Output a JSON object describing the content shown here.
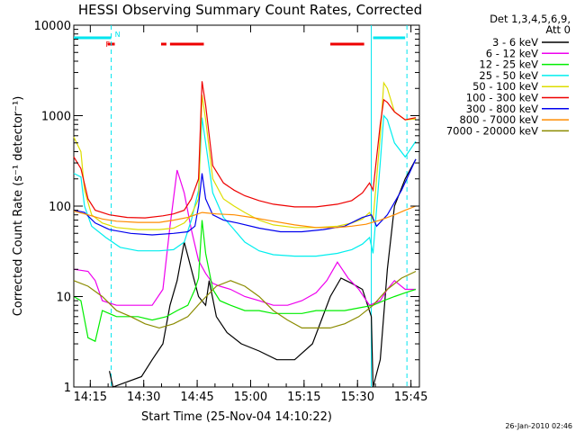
{
  "chart_data": {
    "type": "line",
    "title": "HESSI Observing Summary Count Rates, Corrected",
    "xlabel": "Start Time (25-Nov-04 14:10:22)",
    "ylabel": "Corrected Count Rate (s⁻¹ detector⁻¹)",
    "yscale": "log",
    "ylim": [
      1,
      10000
    ],
    "xlim_minutes": [
      0,
      97
    ],
    "x_tick_labels": [
      "14:15",
      "14:30",
      "14:45",
      "15:00",
      "15:15",
      "15:30",
      "15:45"
    ],
    "x_tick_minutes": [
      4.63,
      19.63,
      34.63,
      49.63,
      64.63,
      79.63,
      94.63
    ],
    "y_tick_labels": [
      "1",
      "10",
      "100",
      "1000",
      "10000"
    ],
    "y_tick_values": [
      1,
      10,
      100,
      1000,
      10000
    ],
    "legend_header": [
      "Det 1,3,4,5,6,9,",
      "Att 0"
    ],
    "legend_position": "right",
    "timestamp": "26-Jan-2010 02:46",
    "flags": [
      {
        "label": "F",
        "color": "#ee0000",
        "segments": [
          [
            9.5,
            11.5
          ]
        ]
      },
      {
        "label": "N",
        "color": "#00e5ee",
        "segments": [
          [
            0,
            10.5
          ],
          [
            84,
            93
          ]
        ]
      },
      {
        "label": "",
        "color": "#ee0000",
        "segments": [
          [
            24.5,
            26
          ],
          [
            27,
            36.5
          ],
          [
            72,
            81.5
          ]
        ]
      }
    ],
    "night_boundaries": [
      {
        "t": 10.5,
        "style": "dashed",
        "color": "#00e5ee"
      },
      {
        "t": 83.5,
        "style": "solid",
        "color": "#00e5ee"
      },
      {
        "t": 93.5,
        "style": "dashed",
        "color": "#00e5ee"
      }
    ],
    "series": [
      {
        "name": "3 - 6 keV",
        "color": "#000000",
        "points": [
          [
            10,
            1.5
          ],
          [
            11,
            1.0
          ],
          [
            19,
            1.3
          ],
          [
            22,
            2.0
          ],
          [
            25,
            3
          ],
          [
            27,
            8
          ],
          [
            29,
            15
          ],
          [
            31,
            40
          ],
          [
            33,
            20
          ],
          [
            35,
            10
          ],
          [
            37,
            8
          ],
          [
            38,
            15
          ],
          [
            40,
            6
          ],
          [
            43,
            4
          ],
          [
            47,
            3
          ],
          [
            52,
            2.5
          ],
          [
            57,
            2
          ],
          [
            62,
            2
          ],
          [
            67,
            3
          ],
          [
            72,
            10
          ],
          [
            75,
            16
          ],
          [
            78,
            14
          ],
          [
            81,
            12
          ],
          [
            83.5,
            6
          ],
          [
            84,
            1.0
          ],
          [
            86,
            2
          ],
          [
            88,
            20
          ],
          [
            90,
            100
          ],
          [
            93,
            200
          ],
          [
            96,
            330
          ]
        ]
      },
      {
        "name": "6 - 12 keV",
        "color": "#ee00ee",
        "points": [
          [
            0,
            20
          ],
          [
            4,
            19
          ],
          [
            6,
            15
          ],
          [
            8,
            9
          ],
          [
            12,
            8
          ],
          [
            18,
            8
          ],
          [
            22,
            8
          ],
          [
            25,
            12
          ],
          [
            27,
            60
          ],
          [
            29,
            250
          ],
          [
            31,
            140
          ],
          [
            33,
            55
          ],
          [
            35,
            25
          ],
          [
            37,
            18
          ],
          [
            39,
            14
          ],
          [
            41,
            13
          ],
          [
            44,
            12
          ],
          [
            48,
            10
          ],
          [
            52,
            9
          ],
          [
            56,
            8
          ],
          [
            60,
            8
          ],
          [
            64,
            9
          ],
          [
            68,
            11
          ],
          [
            71,
            15
          ],
          [
            74,
            24
          ],
          [
            77,
            16
          ],
          [
            80,
            12
          ],
          [
            83,
            8
          ],
          [
            86,
            9
          ],
          [
            88,
            12
          ],
          [
            90,
            15
          ],
          [
            93,
            12
          ],
          [
            96,
            12
          ]
        ]
      },
      {
        "name": "12 - 25 keV",
        "color": "#00ee00",
        "points": [
          [
            0,
            10
          ],
          [
            2,
            9
          ],
          [
            4,
            3.5
          ],
          [
            6,
            3.2
          ],
          [
            8,
            7
          ],
          [
            12,
            6
          ],
          [
            18,
            6
          ],
          [
            22,
            5.5
          ],
          [
            26,
            6
          ],
          [
            29,
            7
          ],
          [
            32,
            8
          ],
          [
            34,
            12
          ],
          [
            35,
            16
          ],
          [
            36,
            70
          ],
          [
            37,
            30
          ],
          [
            39,
            12
          ],
          [
            41,
            9
          ],
          [
            44,
            8
          ],
          [
            48,
            7
          ],
          [
            52,
            7
          ],
          [
            56,
            6.5
          ],
          [
            60,
            6.5
          ],
          [
            64,
            6.5
          ],
          [
            68,
            7
          ],
          [
            72,
            7
          ],
          [
            76,
            7
          ],
          [
            80,
            7.5
          ],
          [
            84,
            8
          ],
          [
            87,
            9
          ],
          [
            90,
            10
          ],
          [
            93,
            11
          ],
          [
            96,
            12
          ]
        ]
      },
      {
        "name": "25 - 50 keV",
        "color": "#00eeee",
        "points": [
          [
            0,
            230
          ],
          [
            2,
            210
          ],
          [
            3,
            100
          ],
          [
            5,
            60
          ],
          [
            9,
            45
          ],
          [
            13,
            35
          ],
          [
            18,
            32
          ],
          [
            24,
            32
          ],
          [
            28,
            33
          ],
          [
            31,
            40
          ],
          [
            33,
            70
          ],
          [
            35,
            150
          ],
          [
            36,
            950
          ],
          [
            37,
            500
          ],
          [
            39,
            140
          ],
          [
            42,
            75
          ],
          [
            45,
            55
          ],
          [
            48,
            40
          ],
          [
            52,
            32
          ],
          [
            56,
            29
          ],
          [
            62,
            28
          ],
          [
            68,
            28
          ],
          [
            74,
            30
          ],
          [
            78,
            33
          ],
          [
            81,
            38
          ],
          [
            83,
            45
          ],
          [
            84,
            30
          ],
          [
            86,
            300
          ],
          [
            87,
            1000
          ],
          [
            88,
            900
          ],
          [
            90,
            500
          ],
          [
            93,
            350
          ],
          [
            96,
            520
          ]
        ]
      },
      {
        "name": "50 - 100 keV",
        "color": "#dddd00",
        "points": [
          [
            0,
            580
          ],
          [
            2,
            400
          ],
          [
            3,
            150
          ],
          [
            5,
            80
          ],
          [
            8,
            65
          ],
          [
            12,
            58
          ],
          [
            18,
            55
          ],
          [
            24,
            55
          ],
          [
            28,
            57
          ],
          [
            31,
            65
          ],
          [
            33,
            80
          ],
          [
            35,
            120
          ],
          [
            36,
            1700
          ],
          [
            37,
            900
          ],
          [
            39,
            200
          ],
          [
            42,
            120
          ],
          [
            45,
            100
          ],
          [
            48,
            85
          ],
          [
            52,
            70
          ],
          [
            56,
            62
          ],
          [
            62,
            58
          ],
          [
            68,
            58
          ],
          [
            74,
            60
          ],
          [
            78,
            65
          ],
          [
            81,
            72
          ],
          [
            83,
            85
          ],
          [
            84,
            70
          ],
          [
            86,
            600
          ],
          [
            87,
            2300
          ],
          [
            88,
            2000
          ],
          [
            90,
            1100
          ],
          [
            93,
            900
          ],
          [
            96,
            920
          ]
        ]
      },
      {
        "name": "100 - 300 keV",
        "color": "#ee0000",
        "points": [
          [
            0,
            350
          ],
          [
            2,
            260
          ],
          [
            4,
            120
          ],
          [
            6,
            90
          ],
          [
            10,
            80
          ],
          [
            15,
            75
          ],
          [
            20,
            74
          ],
          [
            25,
            78
          ],
          [
            28,
            82
          ],
          [
            31,
            90
          ],
          [
            33,
            120
          ],
          [
            35,
            200
          ],
          [
            36,
            2400
          ],
          [
            37,
            1300
          ],
          [
            39,
            280
          ],
          [
            42,
            180
          ],
          [
            45,
            150
          ],
          [
            48,
            130
          ],
          [
            52,
            115
          ],
          [
            56,
            105
          ],
          [
            62,
            98
          ],
          [
            68,
            98
          ],
          [
            74,
            105
          ],
          [
            78,
            115
          ],
          [
            81,
            140
          ],
          [
            83,
            180
          ],
          [
            84,
            150
          ],
          [
            86,
            800
          ],
          [
            87,
            1500
          ],
          [
            88,
            1400
          ],
          [
            90,
            1100
          ],
          [
            93,
            900
          ],
          [
            96,
            950
          ]
        ]
      },
      {
        "name": "300 - 800 keV",
        "color": "#0000ee",
        "points": [
          [
            0,
            90
          ],
          [
            3,
            85
          ],
          [
            6,
            65
          ],
          [
            10,
            55
          ],
          [
            16,
            50
          ],
          [
            22,
            48
          ],
          [
            28,
            50
          ],
          [
            32,
            52
          ],
          [
            34,
            60
          ],
          [
            35,
            100
          ],
          [
            36,
            230
          ],
          [
            37,
            120
          ],
          [
            39,
            80
          ],
          [
            42,
            70
          ],
          [
            46,
            65
          ],
          [
            52,
            57
          ],
          [
            58,
            52
          ],
          [
            64,
            52
          ],
          [
            70,
            55
          ],
          [
            76,
            60
          ],
          [
            81,
            75
          ],
          [
            83.5,
            80
          ],
          [
            85,
            60
          ],
          [
            88,
            80
          ],
          [
            92,
            150
          ],
          [
            96,
            330
          ]
        ]
      },
      {
        "name": "800 - 7000 keV",
        "color": "#ff8c00",
        "points": [
          [
            0,
            88
          ],
          [
            4,
            80
          ],
          [
            8,
            72
          ],
          [
            12,
            68
          ],
          [
            18,
            66
          ],
          [
            24,
            66
          ],
          [
            28,
            70
          ],
          [
            32,
            75
          ],
          [
            36,
            85
          ],
          [
            40,
            82
          ],
          [
            45,
            80
          ],
          [
            50,
            75
          ],
          [
            56,
            68
          ],
          [
            62,
            62
          ],
          [
            68,
            58
          ],
          [
            74,
            58
          ],
          [
            78,
            60
          ],
          [
            82,
            63
          ],
          [
            86,
            70
          ],
          [
            90,
            80
          ],
          [
            93,
            90
          ],
          [
            96,
            100
          ]
        ]
      },
      {
        "name": "7000 - 20000 keV",
        "color": "#8b8b00",
        "points": [
          [
            0,
            15
          ],
          [
            4,
            13
          ],
          [
            8,
            10
          ],
          [
            12,
            7
          ],
          [
            16,
            6
          ],
          [
            20,
            5
          ],
          [
            24,
            4.5
          ],
          [
            28,
            5
          ],
          [
            32,
            6
          ],
          [
            36,
            9
          ],
          [
            40,
            13
          ],
          [
            44,
            15
          ],
          [
            48,
            13
          ],
          [
            52,
            10
          ],
          [
            56,
            7
          ],
          [
            60,
            5.5
          ],
          [
            64,
            4.5
          ],
          [
            68,
            4.5
          ],
          [
            72,
            4.5
          ],
          [
            76,
            5
          ],
          [
            80,
            6
          ],
          [
            84,
            8
          ],
          [
            88,
            12
          ],
          [
            92,
            16
          ],
          [
            96,
            19
          ]
        ]
      }
    ]
  }
}
